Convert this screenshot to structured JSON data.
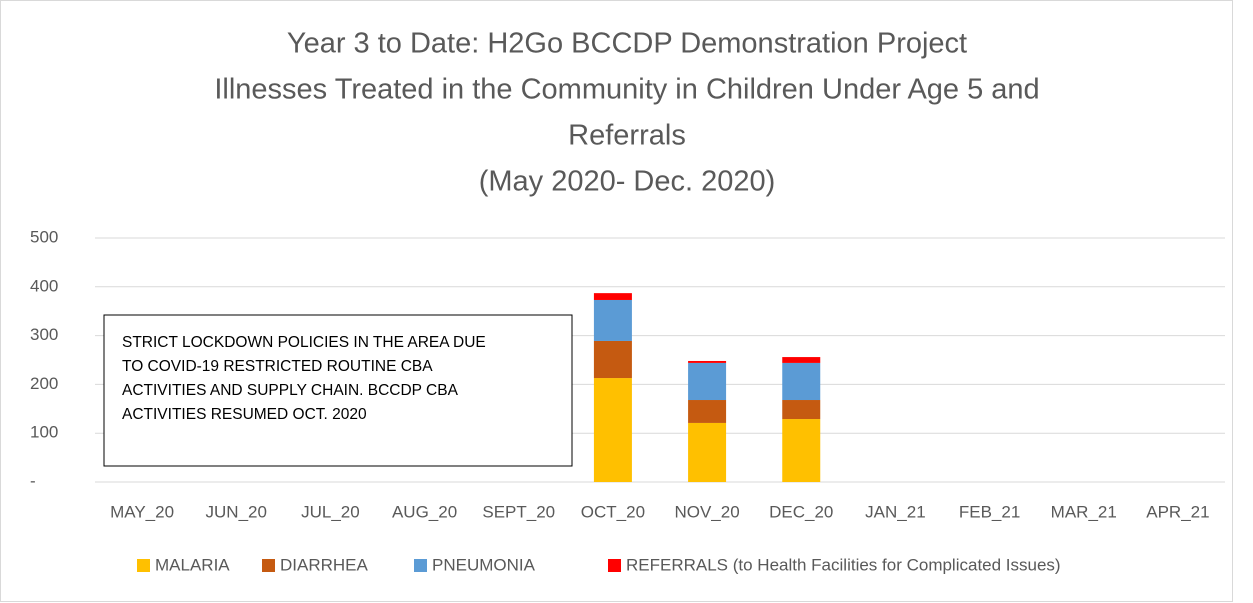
{
  "chart_data": {
    "type": "bar",
    "stacked": true,
    "title": [
      "Year 3 to Date: H2Go BCCDP Demonstration Project",
      "Illnesses Treated in the Community in Children Under Age 5 and",
      "Referrals",
      "(May 2020- Dec. 2020)"
    ],
    "annotation": [
      "STRICT LOCKDOWN POLICIES IN THE AREA DUE",
      "TO COVID-19 RESTRICTED ROUTINE CBA",
      "ACTIVITIES AND SUPPLY CHAIN. BCCDP CBA",
      "ACTIVITIES RESUMED OCT. 2020"
    ],
    "categories": [
      "MAY_20",
      "JUN_20",
      "JUL_20",
      "AUG_20",
      "SEPT_20",
      "OCT_20",
      "NOV_20",
      "DEC_20",
      "JAN_21",
      "FEB_21",
      "MAR_21",
      "APR_21"
    ],
    "series": [
      {
        "name": "MALARIA",
        "color": "#ffc000",
        "values": [
          null,
          null,
          null,
          null,
          null,
          213,
          121,
          129,
          null,
          null,
          null,
          null
        ]
      },
      {
        "name": "DIARRHEA",
        "color": "#c55a11",
        "values": [
          null,
          null,
          null,
          null,
          null,
          76,
          47,
          39,
          null,
          null,
          null,
          null
        ]
      },
      {
        "name": "PNEUMONIA",
        "color": "#5b9bd5",
        "values": [
          null,
          null,
          null,
          null,
          null,
          84,
          76,
          76,
          null,
          null,
          null,
          null
        ]
      },
      {
        "name": "REFERRALS (to Health Facilities for Complicated Issues)",
        "color": "#ff0000",
        "values": [
          null,
          null,
          null,
          null,
          null,
          14,
          4,
          12,
          null,
          null,
          null,
          null
        ]
      }
    ],
    "ylim": [
      0,
      500
    ],
    "yticks": [
      {
        "value": 0,
        "label": "-"
      },
      100,
      200,
      300,
      400,
      500
    ],
    "grid": true,
    "legend": "bottom"
  }
}
